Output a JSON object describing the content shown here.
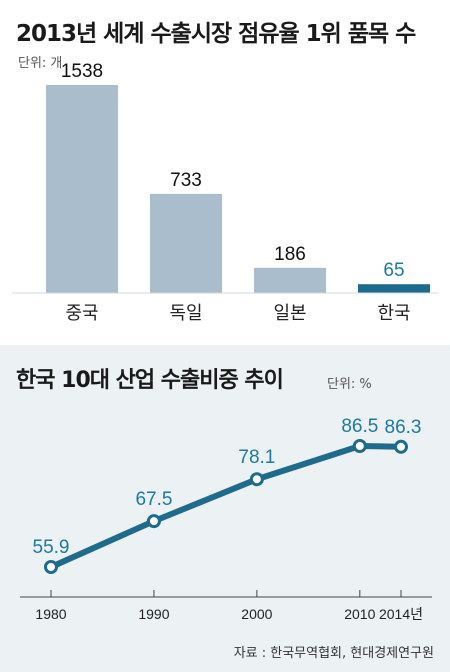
{
  "chart_data": [
    {
      "type": "bar",
      "title": "2013년 세계 수출시장 점유율 1위 품목 수",
      "unit": "단위: 개",
      "categories": [
        "중국",
        "독일",
        "일본",
        "한국"
      ],
      "values": [
        1538,
        733,
        186,
        65
      ],
      "ylim": [
        0,
        1600
      ],
      "highlight_category": "한국",
      "colors": {
        "bar": "#a9bdcc",
        "highlight": "#1d6a8c",
        "highlight_label": "#1d7aa0"
      }
    },
    {
      "type": "line",
      "title": "한국 10대 산업 수출비중 추이",
      "unit": "단위: %",
      "x": [
        1980,
        1990,
        2000,
        2010,
        2014
      ],
      "x_labels": [
        "1980",
        "1990",
        "2000",
        "2010",
        "2014년"
      ],
      "values": [
        55.9,
        67.5,
        78.1,
        86.5,
        86.3
      ],
      "colors": {
        "line": "#1f6b8c",
        "label": "#1d7aa0",
        "background": "#ecf1f4"
      }
    }
  ],
  "source": "자료 : 한국무역협회, 현대경제연구원"
}
